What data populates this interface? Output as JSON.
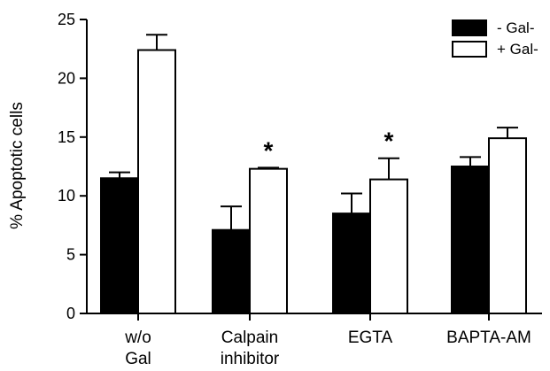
{
  "chart_data": {
    "type": "bar",
    "categories": [
      [
        "w/o",
        "Gal"
      ],
      [
        "Calpain",
        "inhibitor"
      ],
      [
        "EGTA"
      ],
      [
        "BAPTA-AM"
      ]
    ],
    "series": [
      {
        "name": "- Gal-",
        "values": [
          11.5,
          7.1,
          8.5,
          12.5
        ],
        "errors": [
          0.5,
          2.0,
          1.7,
          0.8
        ],
        "fill": "#000000"
      },
      {
        "name": "+ Gal-",
        "values": [
          22.4,
          12.3,
          11.4,
          14.9
        ],
        "errors": [
          1.3,
          0.1,
          1.8,
          0.9
        ],
        "fill": "#ffffff"
      }
    ],
    "significance": [
      "",
      "*",
      "*",
      ""
    ],
    "ylabel": "% Apoptotic cells",
    "xlabel": "",
    "ylim": [
      0,
      25
    ],
    "yticks": [
      0,
      5,
      10,
      15,
      20,
      25
    ],
    "grid": false,
    "legend_position": "top-right"
  },
  "colors": {
    "stroke": "#000000",
    "background": "#ffffff"
  }
}
